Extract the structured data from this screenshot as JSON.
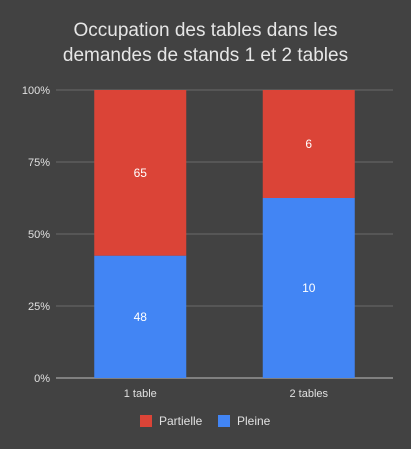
{
  "chart_data": {
    "type": "bar",
    "stacked": "percent",
    "title_lines": [
      "Occupation des tables dans les",
      "demandes de stands 1 et 2 tables"
    ],
    "categories": [
      "1 table",
      "2 tables"
    ],
    "series": [
      {
        "name": "Pleine",
        "values": [
          48,
          10
        ],
        "color": "#4285f4"
      },
      {
        "name": "Partielle",
        "values": [
          65,
          6
        ],
        "color": "#db4437"
      }
    ],
    "y_ticks": [
      "0%",
      "25%",
      "50%",
      "75%",
      "100%"
    ],
    "ylim": [
      0,
      100
    ],
    "grid": true,
    "legend_position": "bottom",
    "legend_order": [
      "Partielle",
      "Pleine"
    ]
  }
}
